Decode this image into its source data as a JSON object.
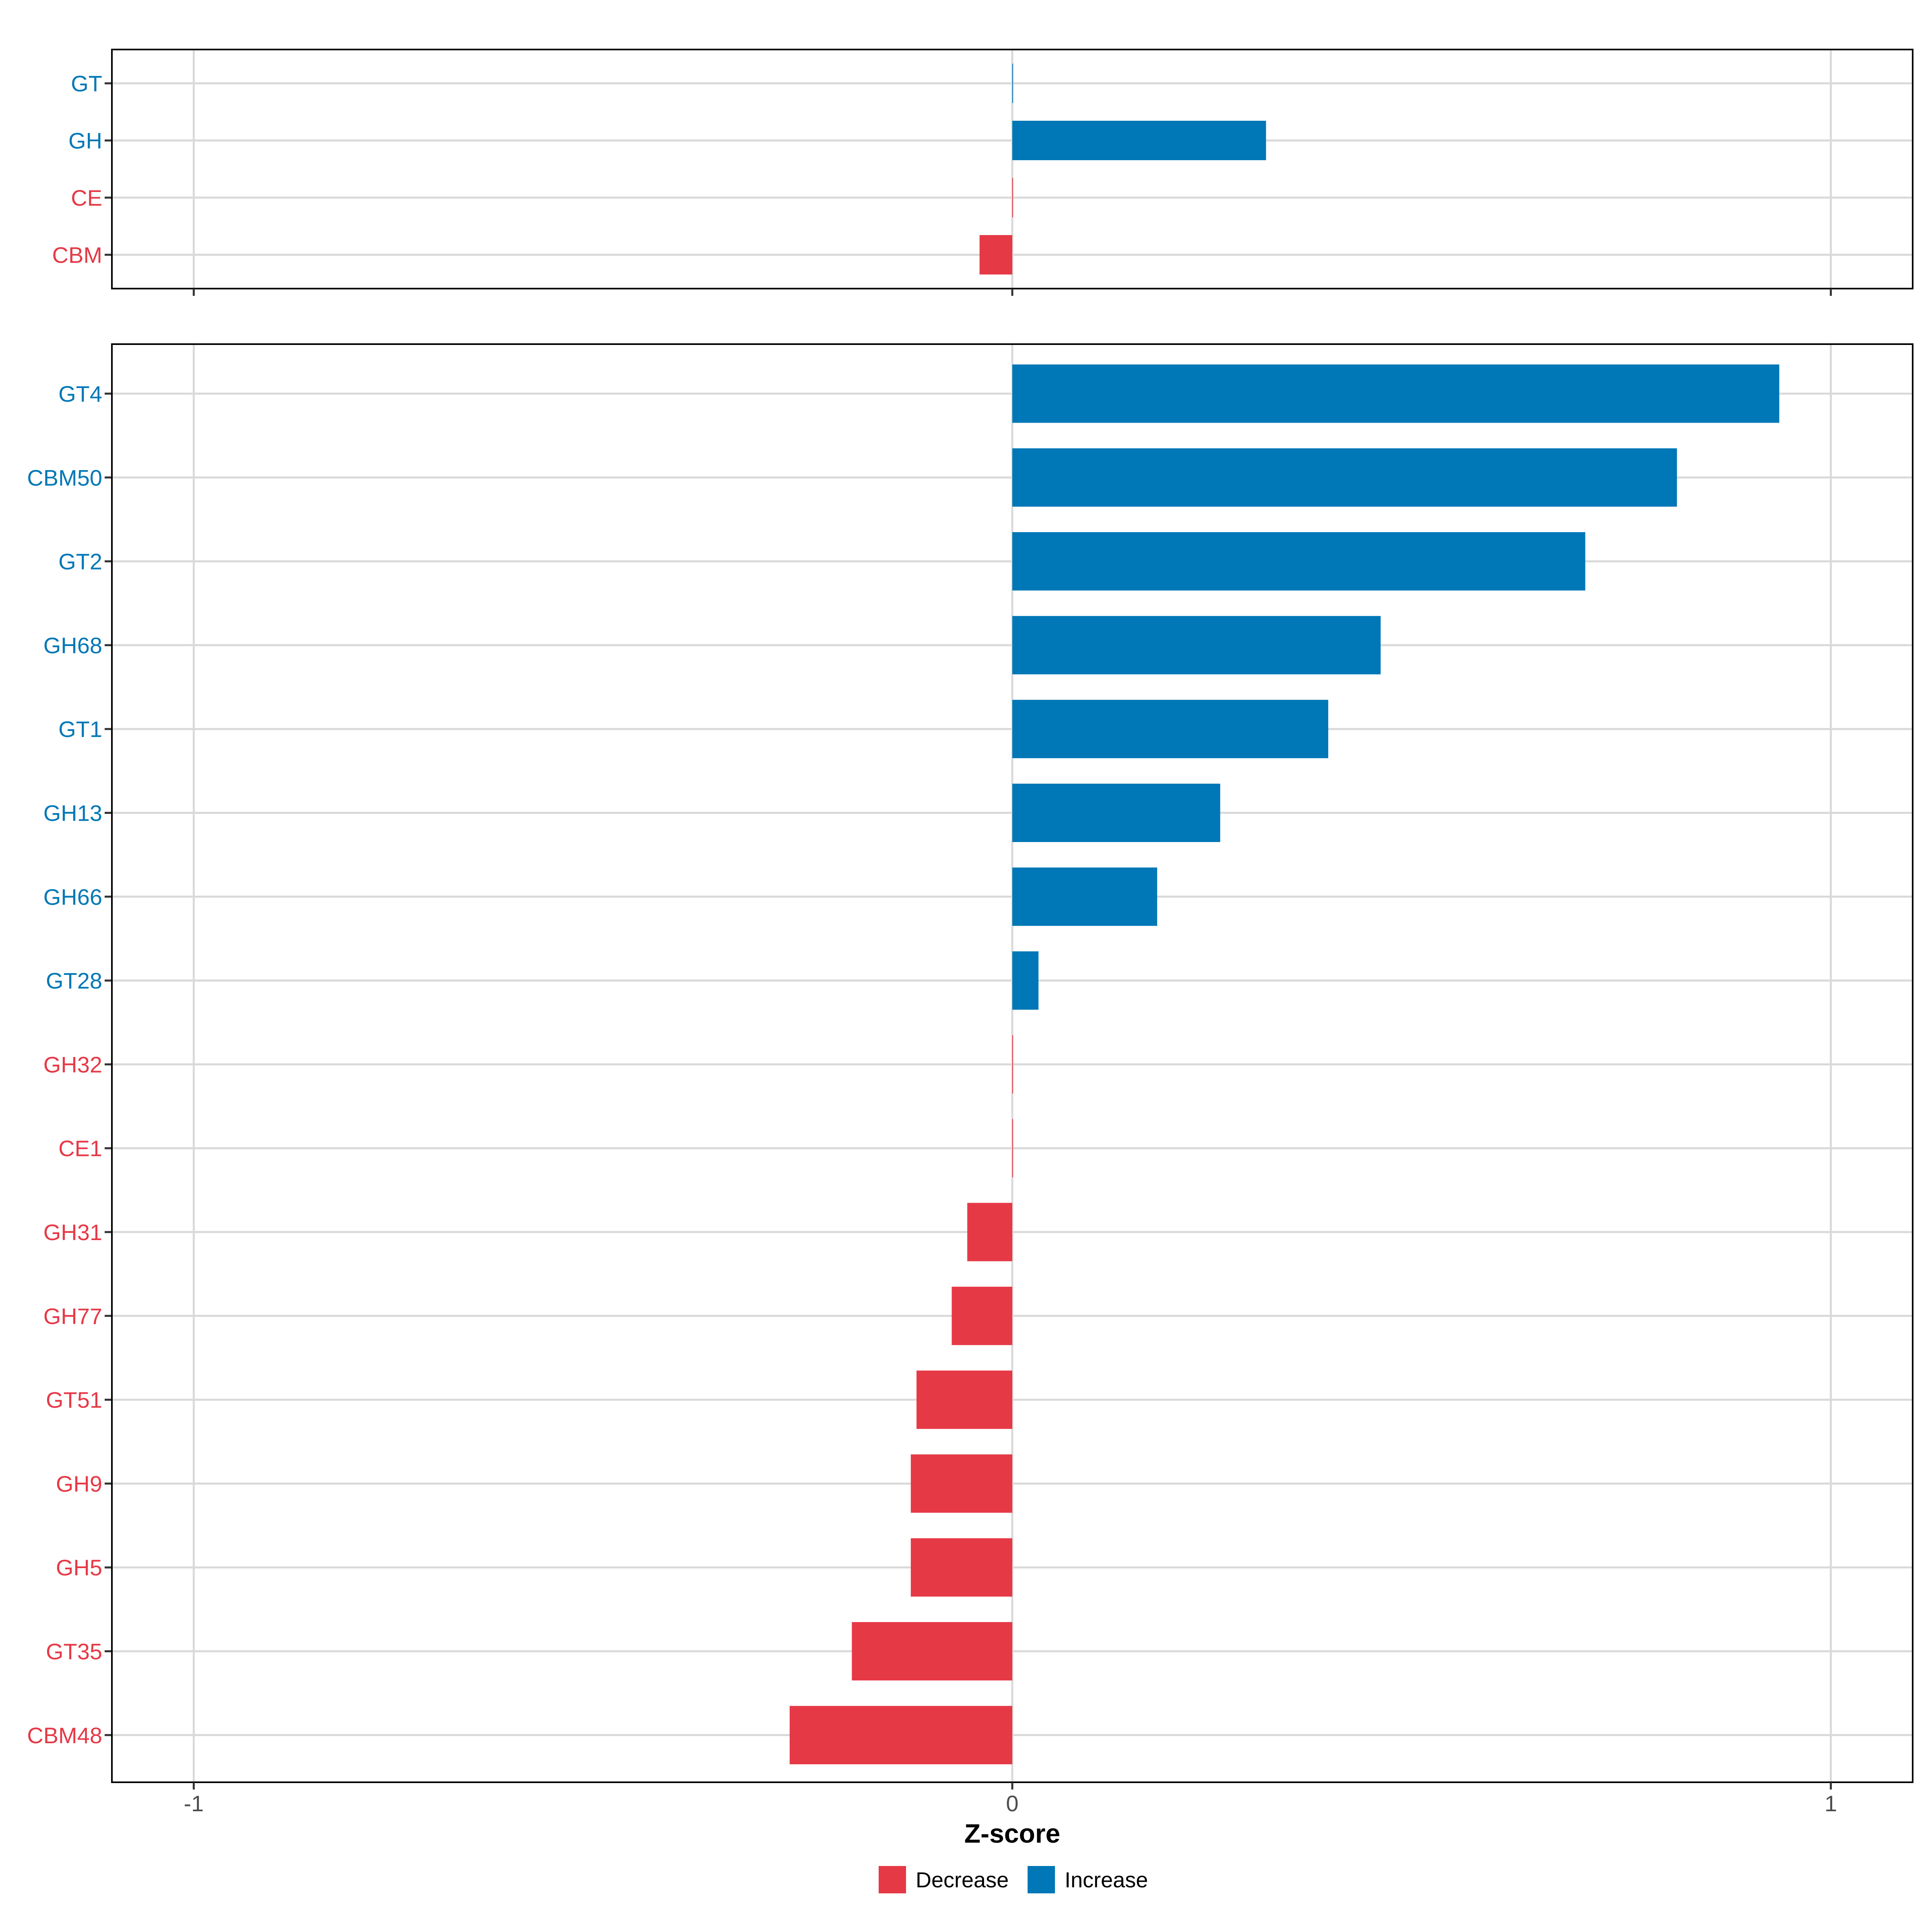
{
  "chart_data": [
    {
      "type": "bar",
      "orientation": "horizontal",
      "categories": [
        "GT",
        "GH",
        "CE",
        "CBM"
      ],
      "values": [
        0.0,
        0.31,
        0.0,
        -0.04
      ],
      "groups": [
        "Increase",
        "Increase",
        "Decrease",
        "Decrease"
      ],
      "xlim": [
        -1.1,
        1.1
      ],
      "x_ticks": [
        -1,
        0,
        1
      ],
      "grid": true
    },
    {
      "type": "bar",
      "orientation": "horizontal",
      "categories": [
        "GT4",
        "CBM50",
        "GT2",
        "GH68",
        "GT1",
        "GH13",
        "GH66",
        "GT28",
        "GH32",
        "CE1",
        "GH31",
        "GH77",
        "GT51",
        "GH9",
        "GH5",
        "GT35",
        "CBM48"
      ],
      "values": [
        0.937,
        0.812,
        0.7,
        0.45,
        0.386,
        0.254,
        0.177,
        0.032,
        0.0,
        0.0,
        -0.055,
        -0.074,
        -0.117,
        -0.124,
        -0.124,
        -0.196,
        -0.272
      ],
      "groups": [
        "Increase",
        "Increase",
        "Increase",
        "Increase",
        "Increase",
        "Increase",
        "Increase",
        "Increase",
        "Decrease",
        "Decrease",
        "Decrease",
        "Decrease",
        "Decrease",
        "Decrease",
        "Decrease",
        "Decrease",
        "Decrease"
      ],
      "xlim": [
        -1.1,
        1.1
      ],
      "x_ticks": [
        -1,
        0,
        1
      ],
      "x_tick_labels": [
        "-1",
        "0",
        "1"
      ],
      "xlabel": "Z-score",
      "grid": true
    }
  ],
  "legend": {
    "placement": "bottom",
    "items": [
      {
        "label": "Decrease",
        "color": "#E63946"
      },
      {
        "label": "Increase",
        "color": "#0077B6"
      }
    ]
  },
  "colors": {
    "Decrease": "#E63946",
    "Increase": "#0077B6",
    "grid": "#D9D9D9"
  }
}
